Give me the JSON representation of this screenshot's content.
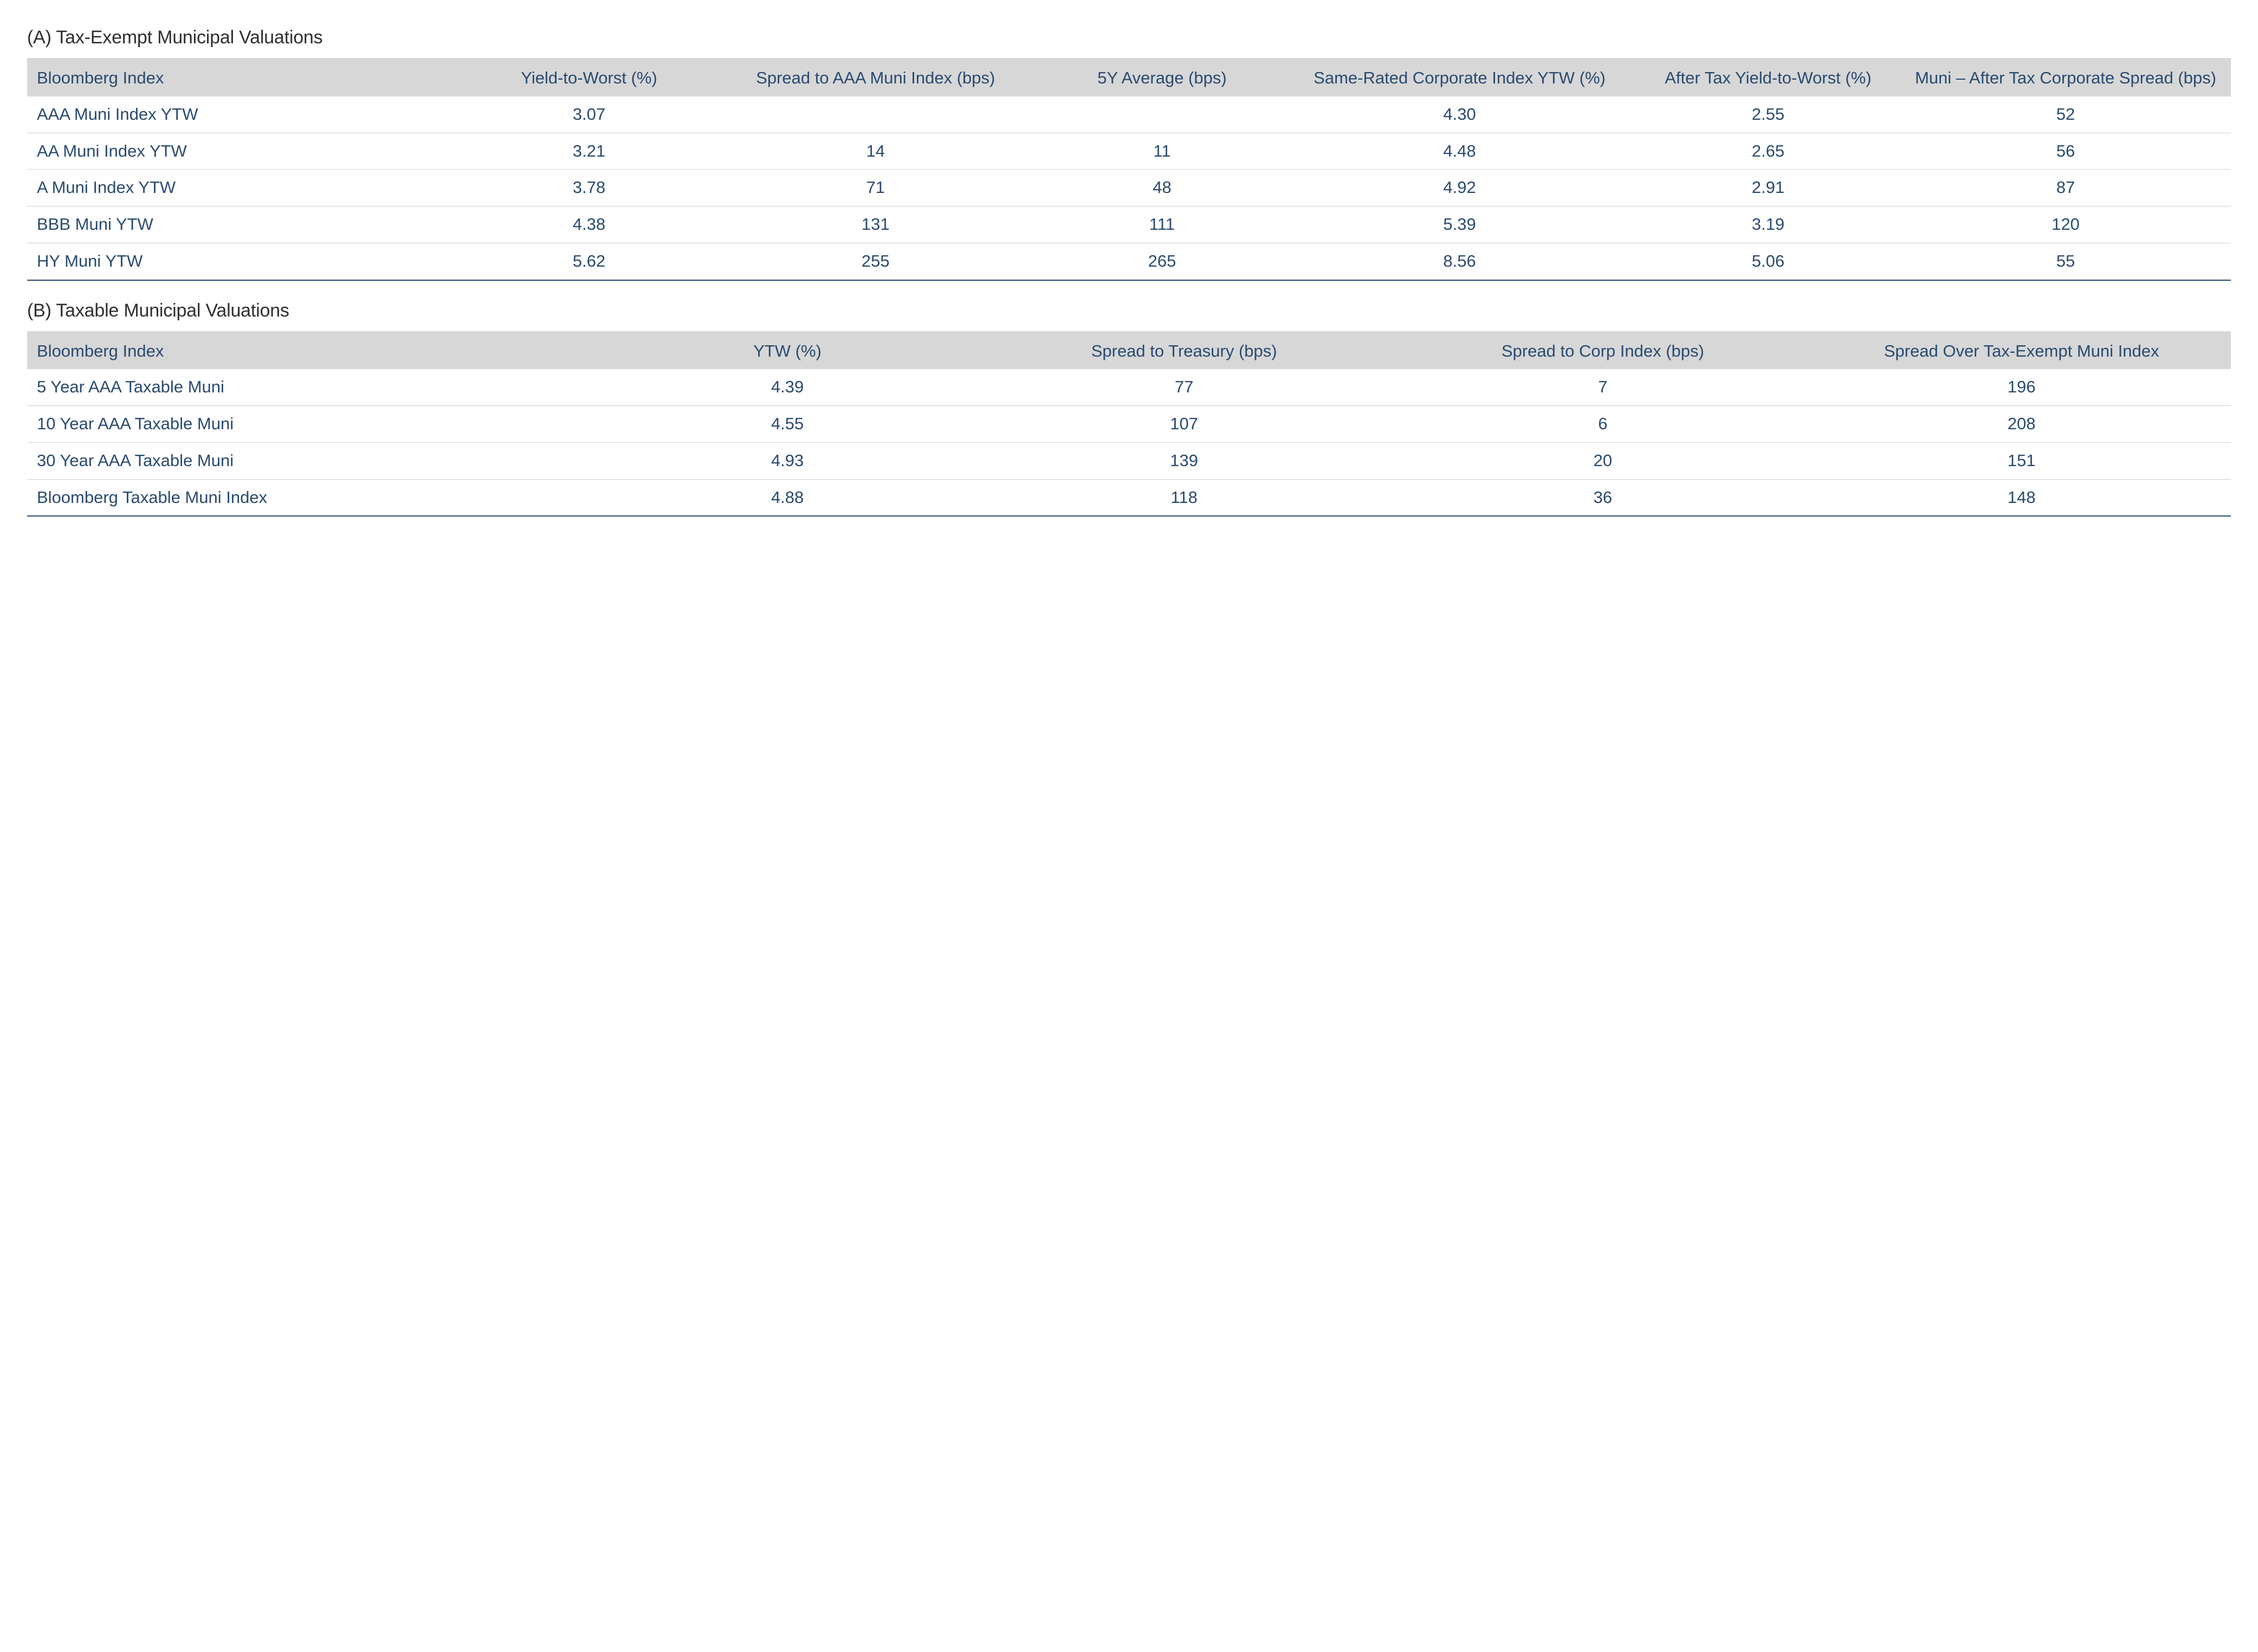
{
  "colors": {
    "text_primary": "#2a4a6e",
    "title_text": "#2f2f2f",
    "header_bg": "#d7d7d8",
    "row_border": "#cfcfcf",
    "bottom_border": "#2a4a6e",
    "background": "#ffffff"
  },
  "typography": {
    "font_family": "Myriad Pro / Segoe UI / Helvetica Neue",
    "title_fontsize_pt": 25,
    "cell_fontsize_pt": 23,
    "font_weight": 400
  },
  "tableA": {
    "title": "(A) Tax-Exempt Municipal Valuations",
    "col_widths_pct": [
      20,
      11,
      15,
      11,
      16,
      12,
      15
    ],
    "columns": [
      "Bloomberg Index",
      "Yield-to-Worst (%)",
      "Spread to AAA Muni Index (bps)",
      "5Y Average (bps)",
      "Same-Rated Corporate Index YTW (%)",
      "After Tax Yield-to-Worst (%)",
      "Muni – After Tax Corporate Spread (bps)"
    ],
    "rows": [
      [
        "AAA Muni Index YTW",
        "3.07",
        "",
        "",
        "4.30",
        "2.55",
        "52"
      ],
      [
        "AA Muni Index YTW",
        "3.21",
        "14",
        "11",
        "4.48",
        "2.65",
        "56"
      ],
      [
        "A Muni Index YTW",
        "3.78",
        "71",
        "48",
        "4.92",
        "2.91",
        "87"
      ],
      [
        "BBB Muni YTW",
        "4.38",
        "131",
        "111",
        "5.39",
        "3.19",
        "120"
      ],
      [
        "HY Muni YTW",
        "5.62",
        "255",
        "265",
        "8.56",
        "5.06",
        "55"
      ]
    ]
  },
  "tableB": {
    "title": "(B) Taxable Municipal Valuations",
    "col_widths_pct": [
      26,
      17,
      19,
      19,
      19
    ],
    "columns": [
      "Bloomberg Index",
      "YTW (%)",
      "Spread to Treasury (bps)",
      "Spread to Corp Index (bps)",
      "Spread Over Tax-Exempt Muni Index"
    ],
    "rows": [
      [
        "5 Year AAA Taxable Muni",
        "4.39",
        "77",
        "7",
        "196"
      ],
      [
        "10 Year AAA Taxable Muni",
        "4.55",
        "107",
        "6",
        "208"
      ],
      [
        "30 Year AAA Taxable Muni",
        "4.93",
        "139",
        "20",
        "151"
      ],
      [
        "Bloomberg Taxable Muni Index",
        "4.88",
        "118",
        "36",
        "148"
      ]
    ]
  }
}
